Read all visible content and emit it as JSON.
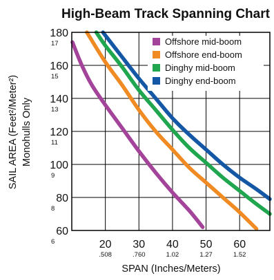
{
  "chart_data": {
    "type": "line",
    "title": "High-Beam Track Spanning Chart",
    "xlabel": "SPAN (Inches/Meters)",
    "ylabel_line1": "SAIL AREA (Feet²/Meter²)",
    "ylabel_line2": "Monohulls Only",
    "xlim": [
      10,
      69
    ],
    "ylim": [
      60,
      180
    ],
    "x_ticks": [
      {
        "value": 20,
        "label": "20",
        "sub": ".508"
      },
      {
        "value": 30,
        "label": "30",
        "sub": ".760"
      },
      {
        "value": 40,
        "label": "40",
        "sub": "1.02"
      },
      {
        "value": 50,
        "label": "50",
        "sub": "1.27"
      },
      {
        "value": 60,
        "label": "60",
        "sub": "1.52"
      }
    ],
    "y_ticks": [
      {
        "value": 60,
        "label": "60",
        "sub": "6"
      },
      {
        "value": 80,
        "label": "80",
        "sub": "8"
      },
      {
        "value": 100,
        "label": "100",
        "sub": "9"
      },
      {
        "value": 120,
        "label": "120",
        "sub": "11"
      },
      {
        "value": 140,
        "label": "140",
        "sub": "13"
      },
      {
        "value": 160,
        "label": "160",
        "sub": "15"
      },
      {
        "value": 180,
        "label": "180",
        "sub": "17"
      }
    ],
    "grid": true,
    "legend_position": "top-right",
    "series": [
      {
        "name": "Offshore mid-boom",
        "color": "#a3449a",
        "points": [
          [
            10.2,
            174
          ],
          [
            13,
            160
          ],
          [
            16,
            148
          ],
          [
            20,
            136
          ],
          [
            25,
            122
          ],
          [
            30,
            108
          ],
          [
            35,
            95
          ],
          [
            40,
            83
          ],
          [
            45,
            72
          ],
          [
            49,
            62
          ]
        ]
      },
      {
        "name": "Offshore end-boom",
        "color": "#f08a22",
        "points": [
          [
            14.5,
            180
          ],
          [
            20,
            162
          ],
          [
            25,
            148
          ],
          [
            30,
            133
          ],
          [
            35,
            120
          ],
          [
            40,
            109
          ],
          [
            45,
            98
          ],
          [
            50,
            89
          ],
          [
            55,
            80
          ],
          [
            60,
            71
          ],
          [
            65,
            61
          ]
        ]
      },
      {
        "name": "Dinghy mid-boom",
        "color": "#1fa64e",
        "points": [
          [
            17.3,
            180
          ],
          [
            20,
            172
          ],
          [
            25,
            159
          ],
          [
            30,
            145
          ],
          [
            35,
            133
          ],
          [
            40,
            121
          ],
          [
            45,
            110
          ],
          [
            50,
            101
          ],
          [
            55,
            92
          ],
          [
            60,
            84
          ],
          [
            65,
            76
          ],
          [
            69,
            70
          ]
        ]
      },
      {
        "name": "Dinghy end-boom",
        "color": "#1457a4",
        "points": [
          [
            19.3,
            180
          ],
          [
            25,
            165
          ],
          [
            30,
            152
          ],
          [
            35,
            140
          ],
          [
            40,
            128
          ],
          [
            45,
            118
          ],
          [
            50,
            109
          ],
          [
            55,
            100
          ],
          [
            60,
            92
          ],
          [
            65,
            85
          ],
          [
            69,
            79
          ]
        ]
      }
    ]
  }
}
